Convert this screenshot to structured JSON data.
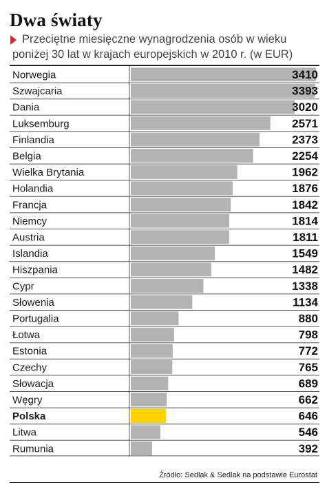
{
  "header": {
    "title": "Dwa światy",
    "subtitle_line1": "Przeciętne miesięczne wynagrodzenia osób w wieku",
    "subtitle_line2": "poniżej 30 lat w krajach europejskich w 2010 r. (w EUR)"
  },
  "footer": {
    "source": "Źródło: Sedlak & Sedlak na podstawie Eurostat"
  },
  "colors": {
    "bar": "#b3b3b3",
    "highlight": "#ffd000",
    "arrow": "#e0262b"
  },
  "chart_data": {
    "type": "bar",
    "orientation": "horizontal",
    "categories": [
      "Norwegia",
      "Szwajcaria",
      "Dania",
      "Luksemburg",
      "Finlandia",
      "Belgia",
      "Wielka Brytania",
      "Holandia",
      "Francja",
      "Niemcy",
      "Austria",
      "Islandia",
      "Hiszpania",
      "Cypr",
      "Słowenia",
      "Portugalia",
      "Łotwa",
      "Estonia",
      "Czechy",
      "Słowacja",
      "Węgry",
      "Polska",
      "Litwa",
      "Rumunia"
    ],
    "values": [
      3410,
      3393,
      3020,
      2571,
      2373,
      2254,
      1962,
      1876,
      1842,
      1814,
      1811,
      1549,
      1482,
      1338,
      1134,
      880,
      798,
      772,
      765,
      689,
      662,
      646,
      546,
      392
    ],
    "highlight": "Polska",
    "xlim": [
      0,
      3450
    ]
  }
}
